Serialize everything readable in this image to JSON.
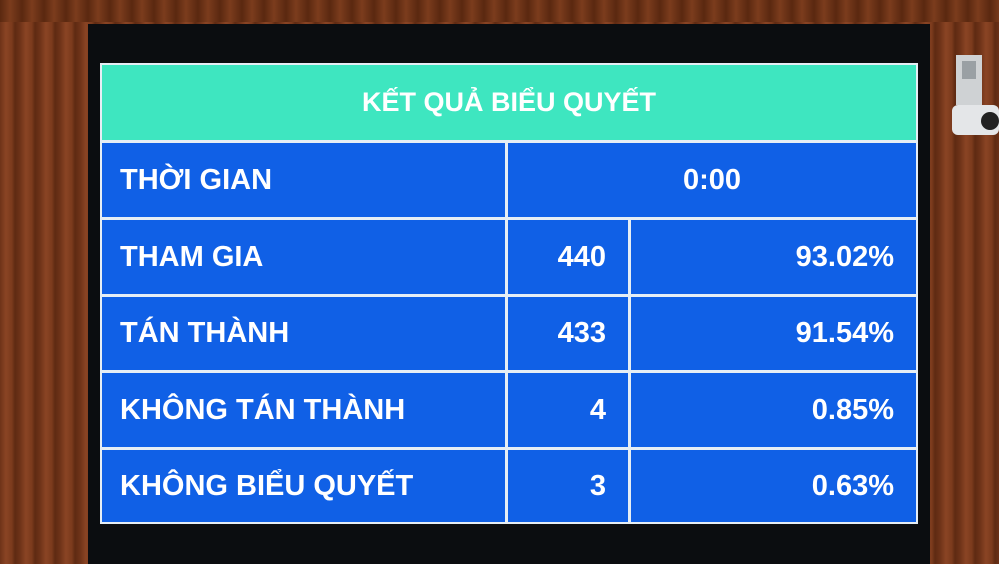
{
  "title": "KẾT QUẢ BIỂU QUYẾT",
  "time": {
    "label": "THỜI GIAN",
    "value": "0:00"
  },
  "rows": [
    {
      "label": "THAM GIA",
      "count": "440",
      "percent": "93.02%"
    },
    {
      "label": "TÁN THÀNH",
      "count": "433",
      "percent": "91.54%"
    },
    {
      "label": "KHÔNG TÁN THÀNH",
      "count": "4",
      "percent": "0.85%"
    },
    {
      "label": "KHÔNG BIỂU QUYẾT",
      "count": "3",
      "percent": "0.63%"
    }
  ],
  "colors": {
    "header": "#3ee6c0",
    "cell": "#1060e6",
    "wood": "#7a3a1c"
  }
}
